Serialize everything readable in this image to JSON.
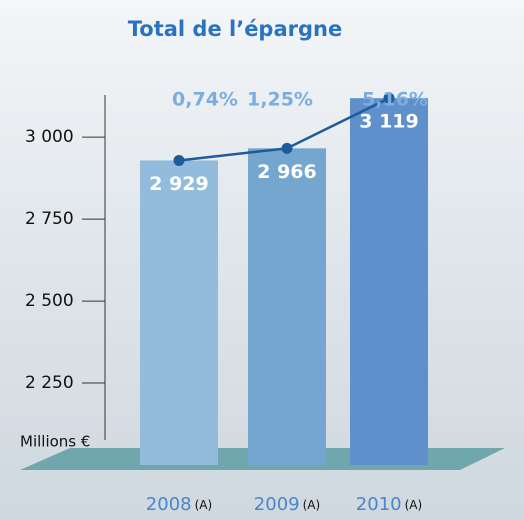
{
  "chart_data": {
    "type": "bar",
    "title": "Total de l’épargne",
    "unit_label": "Millions €",
    "categories": [
      "2008",
      "2009",
      "2010"
    ],
    "category_notes": [
      "(A)",
      "(A)",
      "(A)"
    ],
    "values": [
      2929,
      2966,
      3119
    ],
    "value_labels": [
      "2 929",
      "2 966",
      "3 119"
    ],
    "colors": [
      "#93bcdc",
      "#74a6d0",
      "#5f90cb"
    ],
    "growth": {
      "values": [
        0.74,
        1.25,
        5.16
      ],
      "value_labels": [
        "0,74%",
        "1,25%",
        "5,16%"
      ],
      "color": "#1d5c98"
    },
    "ylim": [
      2000,
      3150
    ],
    "yticks": [
      {
        "value": 2250,
        "label": "2 250"
      },
      {
        "value": 2500,
        "label": "2 500"
      },
      {
        "value": 2750,
        "label": "2 750"
      },
      {
        "value": 3000,
        "label": "3 000"
      }
    ]
  }
}
